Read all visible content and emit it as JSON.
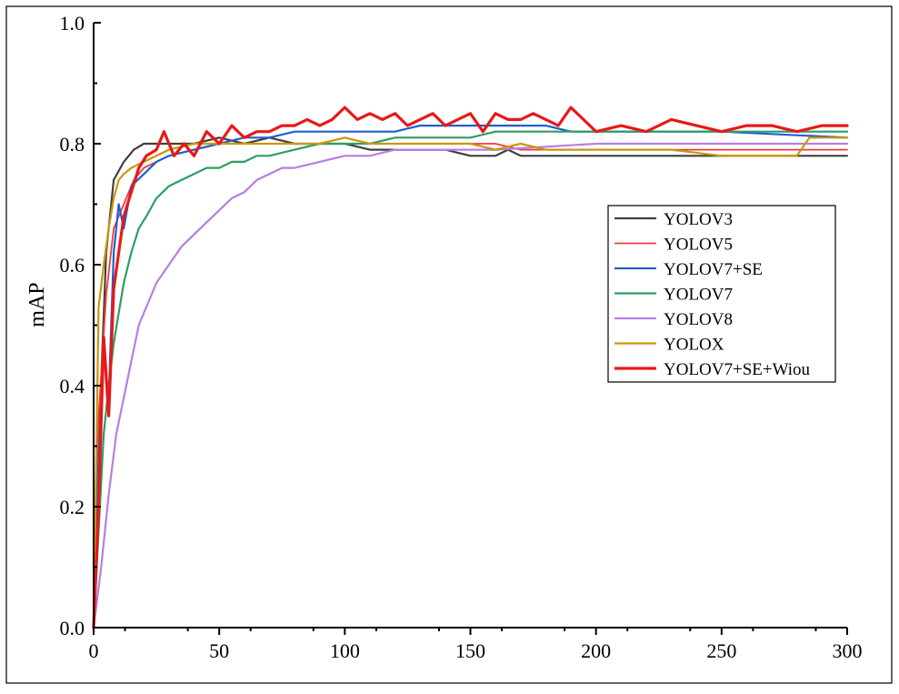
{
  "chart_data": {
    "type": "line",
    "title": "",
    "ylabel": "mAP",
    "xlim": [
      0,
      300
    ],
    "ylim": [
      0.0,
      1.0
    ],
    "x_ticks": [
      "0",
      "50",
      "100",
      "150",
      "200",
      "250",
      "300"
    ],
    "y_ticks": [
      "0.0",
      "0.2",
      "0.4",
      "0.6",
      "0.8",
      "1.0"
    ],
    "legend_position": "right",
    "grid": false,
    "series": [
      {
        "name": "YOLOV3",
        "color": "#404040",
        "width": 2.2,
        "x": [
          0,
          2,
          5,
          8,
          12,
          16,
          20,
          25,
          30,
          40,
          50,
          60,
          70,
          80,
          90,
          100,
          110,
          120,
          130,
          140,
          150,
          160,
          165,
          170,
          175,
          180,
          200,
          250,
          300
        ],
        "y": [
          0.0,
          0.3,
          0.62,
          0.74,
          0.77,
          0.79,
          0.8,
          0.8,
          0.8,
          0.8,
          0.81,
          0.8,
          0.81,
          0.8,
          0.8,
          0.8,
          0.79,
          0.79,
          0.79,
          0.79,
          0.78,
          0.78,
          0.79,
          0.78,
          0.78,
          0.78,
          0.78,
          0.78,
          0.78
        ]
      },
      {
        "name": "YOLOV5",
        "color": "#f23b3b",
        "width": 1.8,
        "x": [
          0,
          2,
          5,
          8,
          12,
          16,
          20,
          25,
          30,
          40,
          50,
          60,
          70,
          80,
          90,
          100,
          110,
          120,
          130,
          140,
          150,
          160,
          170,
          180,
          190,
          200,
          250,
          300
        ],
        "y": [
          0.0,
          0.35,
          0.55,
          0.66,
          0.7,
          0.74,
          0.76,
          0.77,
          0.78,
          0.79,
          0.8,
          0.8,
          0.8,
          0.8,
          0.8,
          0.8,
          0.8,
          0.8,
          0.8,
          0.8,
          0.8,
          0.8,
          0.79,
          0.79,
          0.79,
          0.79,
          0.79,
          0.79
        ]
      },
      {
        "name": "YOLOV7+SE",
        "color": "#1f5fce",
        "width": 2.2,
        "x": [
          0,
          2,
          4,
          6,
          8,
          10,
          12,
          15,
          20,
          25,
          30,
          40,
          50,
          60,
          70,
          80,
          90,
          100,
          110,
          120,
          130,
          140,
          150,
          160,
          170,
          180,
          190,
          200,
          250,
          300
        ],
        "y": [
          0.0,
          0.28,
          0.45,
          0.38,
          0.62,
          0.7,
          0.66,
          0.73,
          0.75,
          0.77,
          0.78,
          0.79,
          0.8,
          0.81,
          0.81,
          0.82,
          0.82,
          0.82,
          0.82,
          0.82,
          0.83,
          0.83,
          0.83,
          0.83,
          0.83,
          0.83,
          0.82,
          0.82,
          0.82,
          0.81
        ]
      },
      {
        "name": "YOLOV7",
        "color": "#2e9e63",
        "width": 2.2,
        "x": [
          0,
          2,
          4,
          6,
          8,
          10,
          12,
          15,
          18,
          21,
          25,
          30,
          35,
          40,
          45,
          50,
          55,
          60,
          65,
          70,
          80,
          90,
          100,
          110,
          120,
          130,
          140,
          150,
          160,
          170,
          180,
          200,
          250,
          300
        ],
        "y": [
          0.0,
          0.16,
          0.32,
          0.4,
          0.47,
          0.52,
          0.57,
          0.62,
          0.66,
          0.68,
          0.71,
          0.73,
          0.74,
          0.75,
          0.76,
          0.76,
          0.77,
          0.77,
          0.78,
          0.78,
          0.79,
          0.8,
          0.8,
          0.8,
          0.81,
          0.81,
          0.81,
          0.81,
          0.82,
          0.82,
          0.82,
          0.82,
          0.82,
          0.82
        ]
      },
      {
        "name": "YOLOV8",
        "color": "#b87ee0",
        "width": 2.2,
        "x": [
          0,
          3,
          6,
          9,
          12,
          15,
          18,
          21,
          25,
          30,
          35,
          40,
          45,
          50,
          55,
          60,
          65,
          70,
          75,
          80,
          90,
          100,
          110,
          120,
          130,
          140,
          150,
          160,
          200,
          250,
          300
        ],
        "y": [
          0.0,
          0.1,
          0.22,
          0.32,
          0.38,
          0.44,
          0.5,
          0.53,
          0.57,
          0.6,
          0.63,
          0.65,
          0.67,
          0.69,
          0.71,
          0.72,
          0.74,
          0.75,
          0.76,
          0.76,
          0.77,
          0.78,
          0.78,
          0.79,
          0.79,
          0.79,
          0.79,
          0.79,
          0.8,
          0.8,
          0.8
        ]
      },
      {
        "name": "YOLOX",
        "color": "#c9970a",
        "width": 2.2,
        "x": [
          0,
          2,
          4,
          6,
          8,
          10,
          12,
          15,
          20,
          25,
          30,
          40,
          50,
          60,
          70,
          80,
          90,
          100,
          110,
          120,
          130,
          140,
          150,
          160,
          170,
          180,
          200,
          230,
          250,
          260,
          280,
          285,
          300
        ],
        "y": [
          0.0,
          0.53,
          0.6,
          0.66,
          0.71,
          0.74,
          0.75,
          0.76,
          0.77,
          0.78,
          0.79,
          0.8,
          0.8,
          0.8,
          0.8,
          0.8,
          0.8,
          0.81,
          0.8,
          0.8,
          0.8,
          0.8,
          0.8,
          0.79,
          0.8,
          0.79,
          0.79,
          0.79,
          0.78,
          0.78,
          0.78,
          0.81,
          0.81
        ]
      },
      {
        "name": "YOLOV7+SE+Wiou",
        "color": "#e81919",
        "width": 3.2,
        "x": [
          0,
          2,
          4,
          6,
          8,
          10,
          12,
          15,
          18,
          21,
          25,
          28,
          32,
          36,
          40,
          45,
          50,
          55,
          60,
          65,
          70,
          75,
          80,
          85,
          90,
          95,
          100,
          105,
          110,
          115,
          120,
          125,
          130,
          135,
          140,
          145,
          150,
          155,
          160,
          165,
          170,
          175,
          180,
          185,
          190,
          195,
          200,
          210,
          220,
          230,
          240,
          250,
          260,
          270,
          280,
          290,
          300
        ],
        "y": [
          0.0,
          0.2,
          0.48,
          0.35,
          0.56,
          0.62,
          0.68,
          0.72,
          0.76,
          0.78,
          0.79,
          0.82,
          0.78,
          0.8,
          0.78,
          0.82,
          0.8,
          0.83,
          0.81,
          0.82,
          0.82,
          0.83,
          0.83,
          0.84,
          0.83,
          0.84,
          0.86,
          0.84,
          0.85,
          0.84,
          0.85,
          0.83,
          0.84,
          0.85,
          0.83,
          0.84,
          0.85,
          0.82,
          0.85,
          0.84,
          0.84,
          0.85,
          0.84,
          0.83,
          0.86,
          0.84,
          0.82,
          0.83,
          0.82,
          0.84,
          0.83,
          0.82,
          0.83,
          0.83,
          0.82,
          0.83,
          0.83
        ]
      }
    ]
  }
}
